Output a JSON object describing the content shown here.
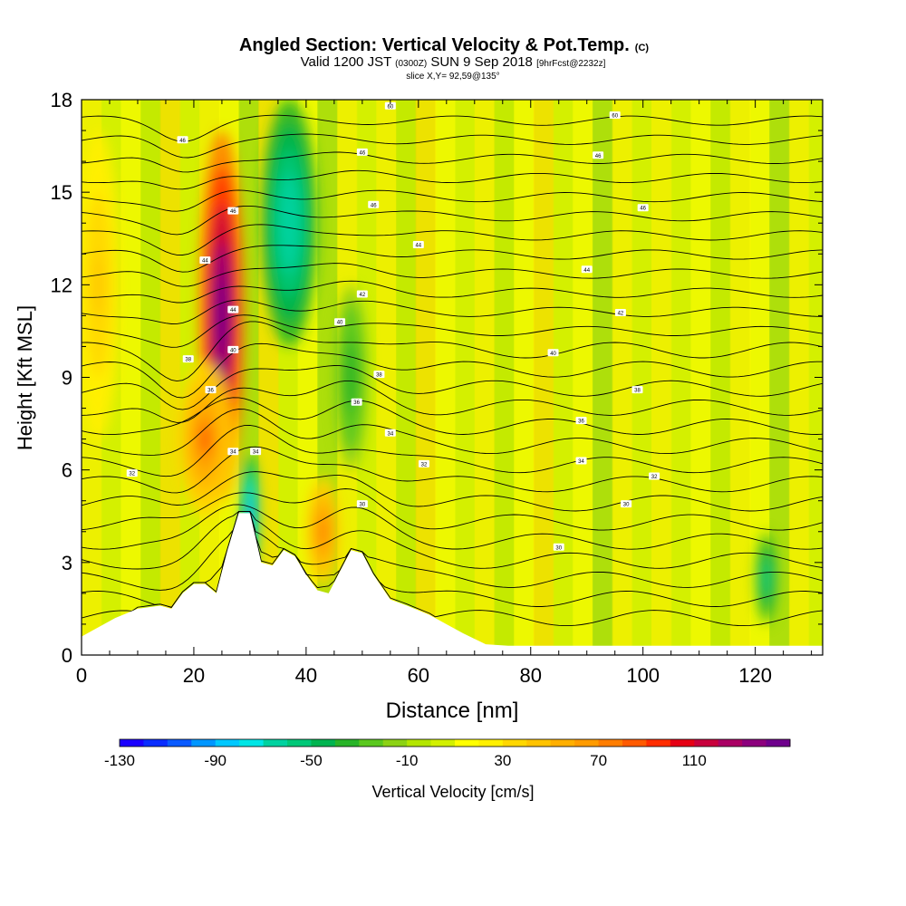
{
  "header": {
    "title": "Angled Section: Vertical Velocity & Pot.Temp.",
    "title_mark": "(C)",
    "valid_a": "Valid 1200 JST",
    "valid_b": "(0300Z)",
    "valid_c": "SUN 9 Sep 2018",
    "valid_d": "[9hrFcst@2232z]",
    "slice": "slice X,Y= 92,59@135°"
  },
  "chart_data": {
    "type": "heatmap",
    "xlabel": "Distance [nm]",
    "ylabel": "Height [Kft MSL]",
    "xlim": [
      0,
      132
    ],
    "ylim": [
      0,
      18
    ],
    "xticks": [
      0,
      20,
      40,
      60,
      80,
      100,
      120
    ],
    "yticks": [
      0,
      3,
      6,
      9,
      12,
      15,
      18
    ],
    "colorbar": {
      "label": "Vertical Velocity [cm/s]",
      "ticks": [
        -130,
        -90,
        -50,
        -10,
        30,
        70,
        110
      ],
      "min": -130,
      "max": 150,
      "step": 10,
      "colors": [
        "#1a00ff",
        "#0a2dff",
        "#0a5aff",
        "#0096ff",
        "#00c8ff",
        "#00e6e6",
        "#00d2a0",
        "#00c878",
        "#00b450",
        "#28b428",
        "#5ac81e",
        "#8cd214",
        "#b4e600",
        "#d2f000",
        "#ffff00",
        "#fff000",
        "#ffd700",
        "#ffc300",
        "#ffaf00",
        "#ff9b00",
        "#ff7d00",
        "#ff5a00",
        "#ff2d00",
        "#e60014",
        "#c8003c",
        "#aa0064",
        "#8c007d",
        "#6e008c"
      ]
    },
    "terrain_kft": [
      [
        0,
        0.6
      ],
      [
        2,
        0.8
      ],
      [
        6,
        1.2
      ],
      [
        10,
        1.5
      ],
      [
        14,
        1.6
      ],
      [
        16,
        1.5
      ],
      [
        18,
        2.0
      ],
      [
        20,
        2.3
      ],
      [
        22,
        2.3
      ],
      [
        24,
        2.0
      ],
      [
        26,
        3.4
      ],
      [
        28,
        4.6
      ],
      [
        30,
        4.6
      ],
      [
        32,
        3.0
      ],
      [
        34,
        2.9
      ],
      [
        36,
        3.4
      ],
      [
        38,
        3.2
      ],
      [
        40,
        2.6
      ],
      [
        42,
        2.1
      ],
      [
        44,
        2.0
      ],
      [
        46,
        2.7
      ],
      [
        48,
        3.4
      ],
      [
        50,
        3.3
      ],
      [
        52,
        2.6
      ],
      [
        55,
        1.8
      ],
      [
        58,
        1.6
      ],
      [
        62,
        1.3
      ],
      [
        65,
        1.0
      ],
      [
        68,
        0.7
      ],
      [
        72,
        0.35
      ],
      [
        76,
        0.3
      ],
      [
        132,
        0.3
      ]
    ],
    "velocity_features": [
      {
        "x": 25,
        "z": 11,
        "value": 150
      },
      {
        "x": 22,
        "z": 7,
        "value": 80
      },
      {
        "x": 43,
        "z": 4,
        "value": 70
      },
      {
        "x": 3,
        "z": 12,
        "value": 45
      },
      {
        "x": 37,
        "z": 14,
        "value": -70
      },
      {
        "x": 30,
        "z": 4.5,
        "value": -100
      },
      {
        "x": 48,
        "z": 9,
        "value": -40
      },
      {
        "x": 122,
        "z": 2.5,
        "value": -60
      }
    ],
    "theta_contour_labels": [
      {
        "x": 55,
        "z": 17.8,
        "text": "60"
      },
      {
        "x": 95,
        "z": 17.5,
        "text": "60"
      },
      {
        "x": 18,
        "z": 16.7,
        "text": "46"
      },
      {
        "x": 50,
        "z": 16.3,
        "text": "46"
      },
      {
        "x": 92,
        "z": 16.2,
        "text": "46"
      },
      {
        "x": 27,
        "z": 14.4,
        "text": "46"
      },
      {
        "x": 52,
        "z": 14.6,
        "text": "46"
      },
      {
        "x": 100,
        "z": 14.5,
        "text": "46"
      },
      {
        "x": 22,
        "z": 12.8,
        "text": "44"
      },
      {
        "x": 60,
        "z": 13.3,
        "text": "44"
      },
      {
        "x": 90,
        "z": 12.5,
        "text": "44"
      },
      {
        "x": 27,
        "z": 11.2,
        "text": "44"
      },
      {
        "x": 50,
        "z": 11.7,
        "text": "42"
      },
      {
        "x": 96,
        "z": 11.1,
        "text": "42"
      },
      {
        "x": 46,
        "z": 10.8,
        "text": "40"
      },
      {
        "x": 27,
        "z": 9.9,
        "text": "40"
      },
      {
        "x": 19,
        "z": 9.6,
        "text": "38"
      },
      {
        "x": 84,
        "z": 9.8,
        "text": "40"
      },
      {
        "x": 53,
        "z": 9.1,
        "text": "38"
      },
      {
        "x": 23,
        "z": 8.6,
        "text": "36"
      },
      {
        "x": 99,
        "z": 8.6,
        "text": "38"
      },
      {
        "x": 49,
        "z": 8.2,
        "text": "36"
      },
      {
        "x": 89,
        "z": 7.6,
        "text": "36"
      },
      {
        "x": 55,
        "z": 7.2,
        "text": "34"
      },
      {
        "x": 27,
        "z": 6.6,
        "text": "34"
      },
      {
        "x": 31,
        "z": 6.6,
        "text": "34"
      },
      {
        "x": 89,
        "z": 6.3,
        "text": "34"
      },
      {
        "x": 61,
        "z": 6.2,
        "text": "32"
      },
      {
        "x": 9,
        "z": 5.9,
        "text": "32"
      },
      {
        "x": 102,
        "z": 5.8,
        "text": "32"
      },
      {
        "x": 50,
        "z": 4.9,
        "text": "30"
      },
      {
        "x": 97,
        "z": 4.9,
        "text": "30"
      },
      {
        "x": 85,
        "z": 3.5,
        "text": "30"
      }
    ]
  }
}
